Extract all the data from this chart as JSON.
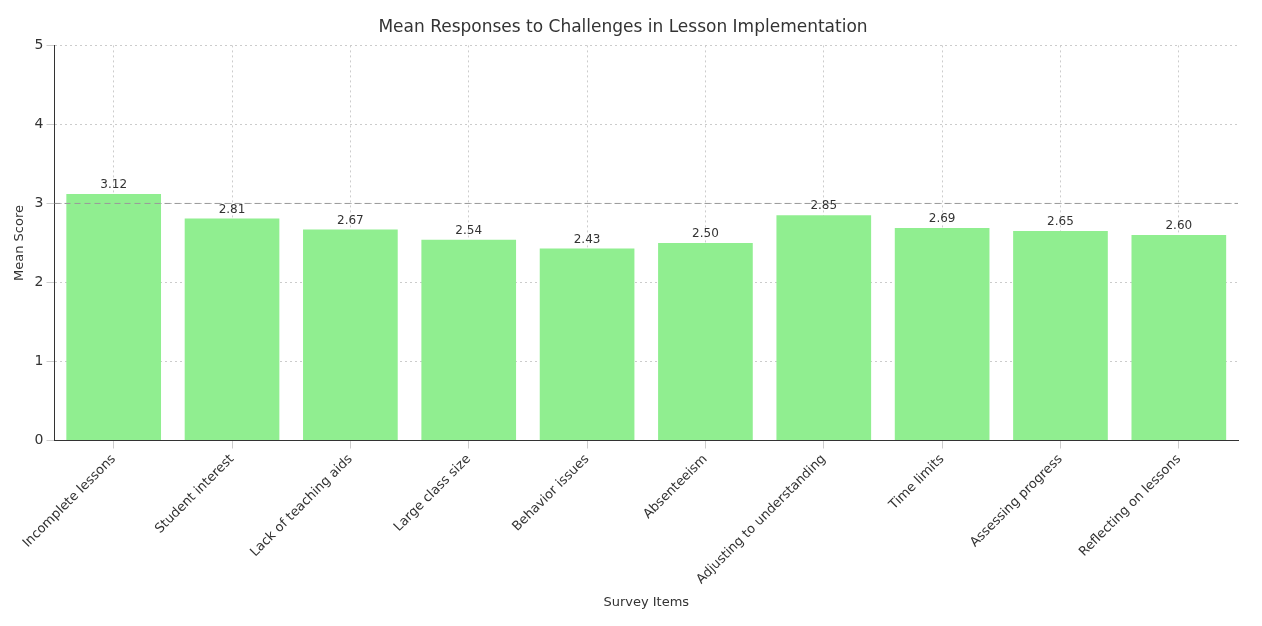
{
  "chart_data": {
    "type": "bar",
    "title": "Mean Responses to Challenges in Lesson Implementation",
    "xlabel": "Survey Items",
    "ylabel": "Mean Score",
    "categories": [
      "Incomplete lessons",
      "Student interest",
      "Lack of teaching aids",
      "Large class size",
      "Behavior issues",
      "Absenteeism",
      "Adjusting to understanding",
      "Time limits",
      "Assessing progress",
      "Reflecting on lessons"
    ],
    "values": [
      3.12,
      2.81,
      2.67,
      2.54,
      2.43,
      2.5,
      2.85,
      2.69,
      2.65,
      2.6
    ],
    "value_labels": [
      "3.12",
      "2.81",
      "2.67",
      "2.54",
      "2.43",
      "2.50",
      "2.85",
      "2.69",
      "2.65",
      "2.60"
    ],
    "color": "#90ee90",
    "ylim": [
      0,
      5
    ],
    "yticks": [
      0,
      1,
      2,
      3,
      4,
      5
    ],
    "grid": true,
    "ref_lines": [
      {
        "axis": "y",
        "value": 3,
        "color": "#999999",
        "line_style": "dashed"
      }
    ]
  }
}
